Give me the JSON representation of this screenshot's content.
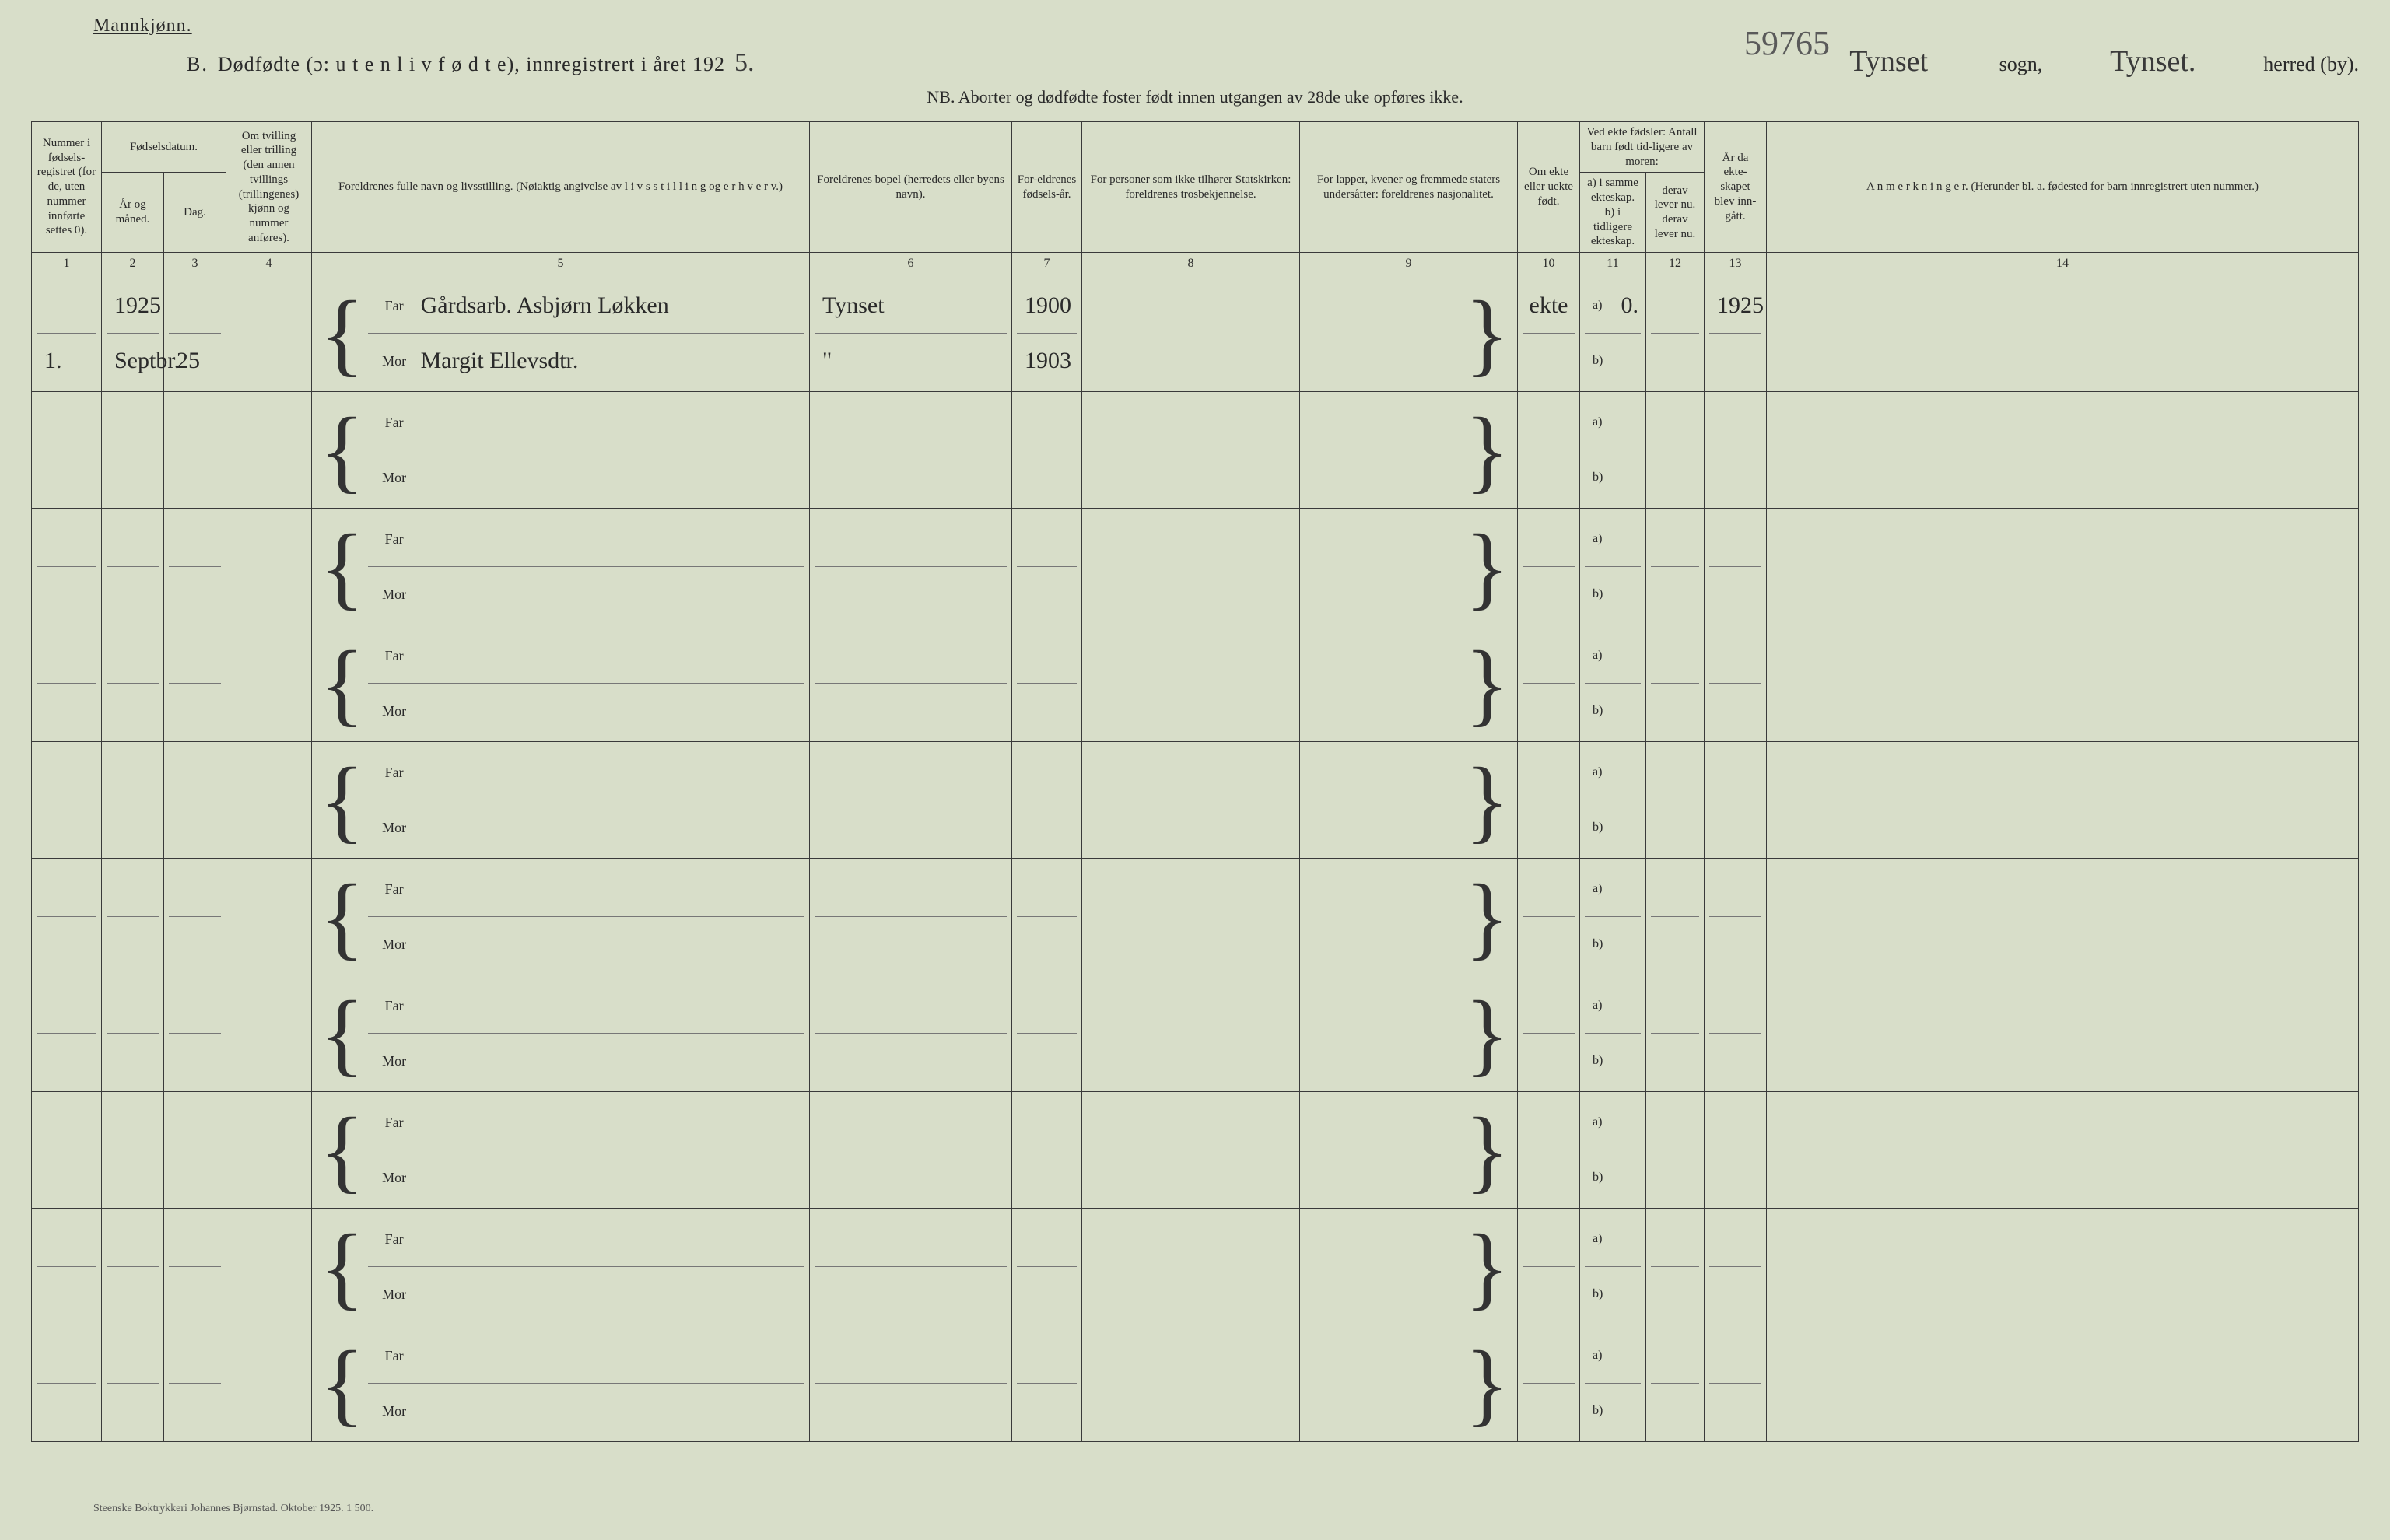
{
  "header": {
    "gender": "Mannkjønn.",
    "section_letter": "B.",
    "title": "Dødfødte (ɔ: u t e n  l i v  f ø d t e), innregistrert i året 192",
    "year_suffix_hand": "5.",
    "sogn_hand": "Tynset",
    "sogn_label": "sogn,",
    "archive_number": "59765",
    "herred_hand": "Tynset.",
    "herred_label": "herred (by).",
    "nb": "NB. Aborter og dødfødte foster født innen utgangen av 28de uke opføres ikke."
  },
  "columns": {
    "c1": "Nummer i fødsels-registret (for de, uten nummer innførte settes 0).",
    "c2_group": "Fødselsdatum.",
    "c2": "År og måned.",
    "c3": "Dag.",
    "c4": "Om tvilling eller trilling (den annen tvillings (trillingenes) kjønn og nummer anføres).",
    "c5": "Foreldrenes fulle navn og livsstilling. (Nøiaktig angivelse av l i v s s t i l l i n g og e r h v e r v.)",
    "c6": "Foreldrenes bopel (herredets eller byens navn).",
    "c7": "For-eldrenes fødsels-år.",
    "c8": "For personer som ikke tilhører Statskirken: foreldrenes trosbekjennelse.",
    "c9": "For lapper, kvener og fremmede staters undersåtter: foreldrenes nasjonalitet.",
    "c10": "Om ekte eller uekte født.",
    "c11_group": "Ved ekte fødsler: Antall barn født tid-ligere av moren:",
    "c11": "a) i samme ekteskap. b) i tidligere ekteskap.",
    "c12": "derav lever nu. derav lever nu.",
    "c13": "År da ekte-skapet blev inn-gått.",
    "c14": "A n m e r k n i n g e r. (Herunder bl. a. fødested for barn innregistrert uten nummer.)"
  },
  "colnums": [
    "1",
    "2",
    "3",
    "4",
    "5",
    "6",
    "7",
    "8",
    "9",
    "10",
    "11",
    "12",
    "13",
    "14"
  ],
  "labels": {
    "far": "Far",
    "mor": "Mor",
    "a": "a)",
    "b": "b)"
  },
  "rows": [
    {
      "num": "1.",
      "year": "1925",
      "month": "Septbr.",
      "day": "25",
      "twin": "",
      "far_name": "Gårdsarb. Asbjørn Løkken",
      "mor_name": "Margit Ellevsdtr.",
      "far_bopel": "Tynset",
      "mor_bopel": "\"",
      "far_year": "1900",
      "mor_year": "1903",
      "c8": "",
      "c9": "",
      "ekte": "ekte",
      "a_val": "0.",
      "b_val": "",
      "c12": "",
      "c13": "1925",
      "c14": ""
    },
    {},
    {},
    {},
    {},
    {},
    {},
    {},
    {},
    {}
  ],
  "footer": "Steenske Boktrykkeri Johannes Bjørnstad. Oktober 1925.  1 500.",
  "style": {
    "background": "#d8dec9",
    "ink": "#2a2a2a",
    "border": "#3a3a3a",
    "hand_font": "Brush Script MT"
  }
}
